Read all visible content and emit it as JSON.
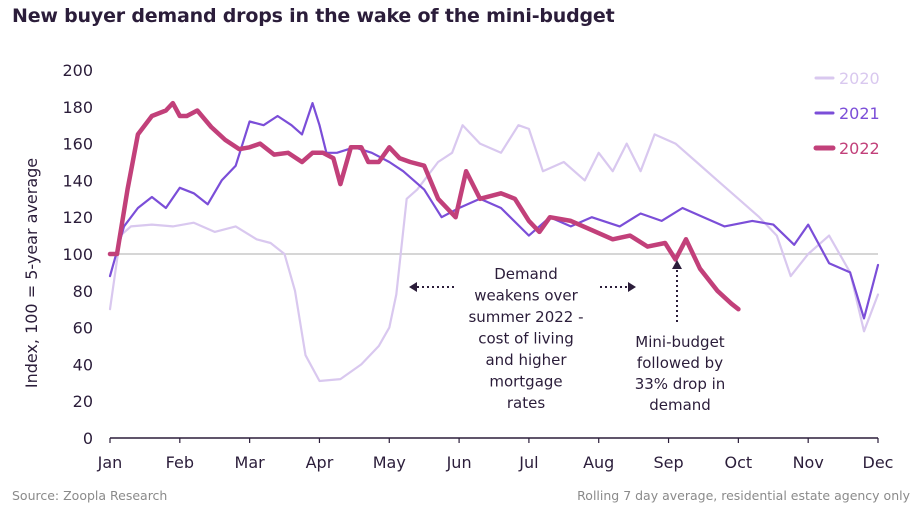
{
  "chart_data": {
    "type": "line",
    "title": "New buyer demand drops in the wake of the mini-budget",
    "ylabel": "Index, 100 = 5-year average",
    "xlabel": "",
    "ylim": [
      0,
      200
    ],
    "yticks": [
      0,
      20,
      40,
      60,
      80,
      100,
      120,
      140,
      160,
      180,
      200
    ],
    "x_tick_labels": [
      "Jan",
      "Feb",
      "Mar",
      "Apr",
      "May",
      "Jun",
      "Jul",
      "Aug",
      "Sep",
      "Oct",
      "Nov",
      "Dec"
    ],
    "xlim": [
      0,
      11
    ],
    "grid": false,
    "reference_line": 100,
    "legend_position": "top-right",
    "series": [
      {
        "name": "2020",
        "color": "#d9c8ef",
        "x": [
          0.0,
          0.15,
          0.3,
          0.6,
          0.9,
          1.2,
          1.5,
          1.8,
          2.1,
          2.3,
          2.5,
          2.65,
          2.8,
          3.0,
          3.3,
          3.6,
          3.85,
          4.0,
          4.1,
          4.25,
          4.4,
          4.7,
          4.9,
          5.05,
          5.3,
          5.6,
          5.85,
          6.0,
          6.2,
          6.5,
          6.8,
          7.0,
          7.2,
          7.4,
          7.6,
          7.8,
          8.1,
          8.4,
          8.7,
          9.0,
          9.3,
          9.55,
          9.75,
          10.0,
          10.3,
          10.6,
          10.8,
          11.0
        ],
        "values": [
          70,
          110,
          115,
          116,
          115,
          117,
          112,
          115,
          108,
          106,
          100,
          80,
          45,
          31,
          32,
          40,
          50,
          60,
          78,
          130,
          135,
          150,
          155,
          170,
          160,
          155,
          170,
          168,
          145,
          150,
          140,
          155,
          145,
          160,
          145,
          165,
          160,
          150,
          140,
          130,
          120,
          110,
          88,
          100,
          110,
          90,
          58,
          78
        ]
      },
      {
        "name": "2021",
        "color": "#7b4ed8",
        "x": [
          0.0,
          0.2,
          0.4,
          0.6,
          0.8,
          1.0,
          1.2,
          1.4,
          1.6,
          1.8,
          2.0,
          2.2,
          2.4,
          2.6,
          2.75,
          2.9,
          3.0,
          3.1,
          3.25,
          3.5,
          3.75,
          4.0,
          4.2,
          4.5,
          4.75,
          5.0,
          5.3,
          5.6,
          6.0,
          6.3,
          6.6,
          6.9,
          7.3,
          7.6,
          7.9,
          8.2,
          8.5,
          8.8,
          9.2,
          9.5,
          9.8,
          10.0,
          10.3,
          10.6,
          10.8,
          11.0
        ],
        "values": [
          88,
          115,
          125,
          131,
          125,
          136,
          133,
          127,
          140,
          148,
          172,
          170,
          175,
          170,
          165,
          182,
          170,
          155,
          155,
          158,
          155,
          150,
          145,
          135,
          120,
          125,
          130,
          125,
          110,
          120,
          115,
          120,
          115,
          122,
          118,
          125,
          120,
          115,
          118,
          116,
          105,
          116,
          95,
          90,
          65,
          94
        ]
      },
      {
        "name": "2022",
        "color": "#c2407a",
        "x": [
          0.0,
          0.1,
          0.25,
          0.4,
          0.6,
          0.8,
          0.9,
          1.0,
          1.1,
          1.25,
          1.45,
          1.65,
          1.85,
          2.0,
          2.15,
          2.35,
          2.55,
          2.75,
          2.9,
          3.05,
          3.2,
          3.3,
          3.45,
          3.6,
          3.7,
          3.85,
          4.0,
          4.15,
          4.3,
          4.5,
          4.7,
          4.95,
          5.1,
          5.3,
          5.6,
          5.8,
          6.0,
          6.15,
          6.3,
          6.6,
          6.9,
          7.2,
          7.45,
          7.7,
          7.95,
          8.1,
          8.25,
          8.45,
          8.7,
          8.9,
          9.0
        ],
        "values": [
          100,
          100,
          135,
          165,
          175,
          178,
          182,
          175,
          175,
          178,
          169,
          162,
          157,
          158,
          160,
          154,
          155,
          150,
          155,
          155,
          152,
          138,
          158,
          158,
          150,
          150,
          158,
          152,
          150,
          148,
          130,
          120,
          145,
          130,
          133,
          130,
          118,
          112,
          120,
          118,
          113,
          108,
          110,
          104,
          106,
          97,
          108,
          92,
          80,
          73,
          70
        ]
      }
    ],
    "annotations": [
      {
        "id": "summer",
        "lines": [
          "Demand",
          "weakens over",
          "summer 2022 -",
          "cost of living",
          "and higher",
          "mortgage",
          "rates"
        ]
      },
      {
        "id": "mini_budget",
        "lines": [
          "Mini-budget",
          "followed by",
          "33% drop in",
          "demand"
        ]
      }
    ]
  },
  "footer": {
    "source": "Source: Zoopla Research",
    "note": "Rolling 7 day average, residential estate agency only"
  },
  "colors": {
    "title": "#2b1d3a",
    "axis": "#2b1d3a",
    "reference": "#c8c8c8",
    "footer": "#8a8a8a"
  }
}
